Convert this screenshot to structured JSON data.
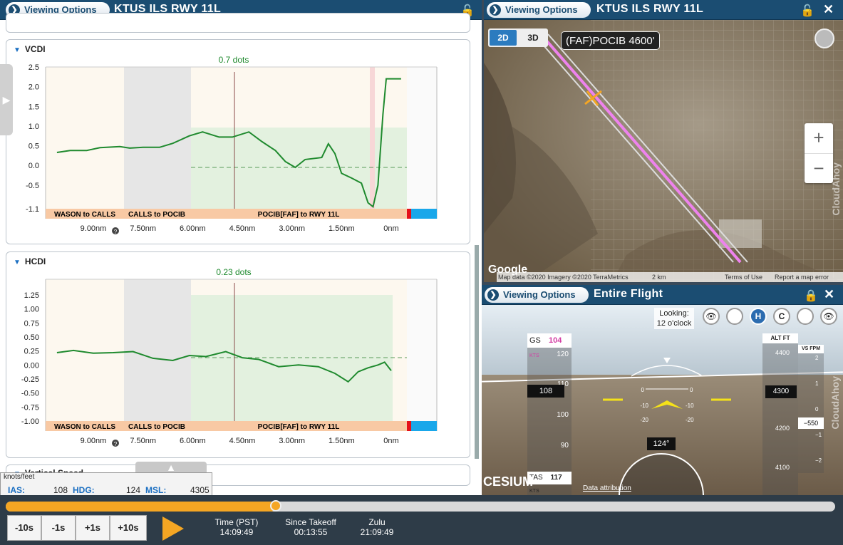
{
  "left_header": {
    "viewing_label": "Viewing Options",
    "title": "KTUS ILS RWY 11L"
  },
  "map_header": {
    "viewing_label": "Viewing Options",
    "title": "KTUS ILS RWY 11L"
  },
  "cam_header": {
    "viewing_label": "Viewing Options",
    "title": "Entire Flight"
  },
  "vcdi": {
    "title": "VCDI",
    "value_label": "0.7 dots"
  },
  "hcdi": {
    "title": "HCDI",
    "value_label": "0.23 dots"
  },
  "vspeed": {
    "title": "Vertical Speed"
  },
  "segments": [
    "WASON to CALLS",
    "CALLS to POCIB",
    "POCIB[FAF] to RWY 11L"
  ],
  "x_ticks": [
    "9.00nm",
    "7.50nm",
    "6.00nm",
    "4.50nm",
    "3.00nm",
    "1.50nm",
    "0nm"
  ],
  "chart_data": [
    {
      "type": "line",
      "title": "VCDI",
      "x_ticks": [
        "9.00nm",
        "7.50nm",
        "6.00nm",
        "4.50nm",
        "3.00nm",
        "1.50nm",
        "0nm"
      ],
      "y_ticks": [
        "2.5",
        "2.0",
        "1.5",
        "1.0",
        "0.5",
        "0.0",
        "-0.5",
        "-1.1"
      ],
      "ylim": [
        -1.1,
        2.5
      ],
      "annotation": "0.7 dots",
      "series": [
        {
          "values": [
            [
              10.1,
              0.33
            ],
            [
              9.7,
              0.38
            ],
            [
              9.2,
              0.38
            ],
            [
              8.8,
              0.45
            ],
            [
              8.2,
              0.48
            ],
            [
              7.9,
              0.44
            ],
            [
              7.5,
              0.46
            ],
            [
              7.0,
              0.46
            ],
            [
              6.6,
              0.56
            ],
            [
              6.1,
              0.75
            ],
            [
              5.7,
              0.85
            ],
            [
              5.2,
              0.72
            ],
            [
              4.8,
              0.72
            ],
            [
              4.3,
              0.85
            ],
            [
              3.9,
              0.6
            ],
            [
              3.5,
              0.38
            ],
            [
              3.2,
              0.1
            ],
            [
              2.9,
              -0.05
            ],
            [
              2.6,
              0.15
            ],
            [
              2.1,
              0.2
            ],
            [
              1.9,
              0.55
            ],
            [
              1.7,
              0.3
            ],
            [
              1.5,
              -0.2
            ],
            [
              1.2,
              -0.32
            ],
            [
              0.9,
              -0.45
            ],
            [
              0.7,
              -0.95
            ],
            [
              0.55,
              -1.05
            ],
            [
              0.4,
              -0.5
            ],
            [
              0.25,
              1.3
            ],
            [
              0.15,
              2.2
            ],
            [
              -0.3,
              2.2
            ]
          ]
        }
      ]
    },
    {
      "type": "line",
      "title": "HCDI",
      "x_ticks": [
        "9.00nm",
        "7.50nm",
        "6.00nm",
        "4.50nm",
        "3.00nm",
        "1.50nm",
        "0nm"
      ],
      "y_ticks": [
        "1.25",
        "1.00",
        "0.75",
        "0.50",
        "0.25",
        "0.00",
        "-0.25",
        "-0.50",
        "-0.75",
        "-1.00"
      ],
      "ylim": [
        -1.0,
        1.25
      ],
      "annotation": "0.23 dots",
      "series": [
        {
          "values": [
            [
              10.1,
              0.22
            ],
            [
              9.6,
              0.26
            ],
            [
              9.0,
              0.21
            ],
            [
              8.4,
              0.22
            ],
            [
              7.8,
              0.24
            ],
            [
              7.2,
              0.12
            ],
            [
              6.6,
              0.08
            ],
            [
              6.1,
              0.17
            ],
            [
              5.6,
              0.15
            ],
            [
              5.0,
              0.24
            ],
            [
              4.5,
              0.13
            ],
            [
              4.0,
              0.1
            ],
            [
              3.4,
              -0.03
            ],
            [
              2.8,
              0.0
            ],
            [
              2.2,
              -0.03
            ],
            [
              1.7,
              -0.15
            ],
            [
              1.3,
              -0.3
            ],
            [
              1.0,
              -0.12
            ],
            [
              0.7,
              -0.05
            ],
            [
              0.4,
              0.0
            ],
            [
              0.2,
              0.05
            ],
            [
              0.0,
              -0.1
            ]
          ]
        }
      ]
    }
  ],
  "map": {
    "waypoint_label": "(FAF)POCIB 4600'",
    "btn_2d": "2D",
    "btn_3d": "3D",
    "zoom_in": "+",
    "zoom_out": "−",
    "google": "Google",
    "attribution": "Map data ©2020 Imagery ©2020 TerraMetrics",
    "scale": "2 km",
    "terms": "Terms of Use",
    "report": "Report a map error",
    "watermark": "CloudAhoy"
  },
  "camera": {
    "looking_label": "Looking:",
    "looking_value": "12 o'clock",
    "gs_label": "GS",
    "gs_value": "104",
    "gs_unit": "KTS",
    "speed_current": "108",
    "speed_ticks": [
      "120",
      "110",
      "100",
      "90"
    ],
    "tas_label": "TAS",
    "tas_value": "117",
    "tas_unit": "KTS",
    "alt_label": "ALT FT",
    "alt_current": "4300",
    "alt_ticks": [
      "4400",
      "4200",
      "4100"
    ],
    "vs_label": "VS FPM",
    "vs_current": "−550",
    "vs_ticks": [
      "2",
      "1",
      "0",
      "−1",
      "−2"
    ],
    "heading": "124°",
    "pitch": [
      "0",
      "-10",
      "-20",
      "-10",
      "-20"
    ],
    "cesium": "CESIUM",
    "data_attribution": "Data attribution",
    "watermark": "CloudAhoy"
  },
  "info": {
    "unit": "knots/feet",
    "ias_label": "IAS:",
    "ias_value": "108",
    "hdg_label": "HDG:",
    "hdg_value": "124",
    "msl_label": "MSL:",
    "msl_value": "4305"
  },
  "playback": {
    "progress": 0.326,
    "skip_buttons": [
      "-10s",
      "-1s",
      "+1s",
      "+10s"
    ],
    "time_label": "Time (PST)",
    "time_value": "14:09:49",
    "since_label": "Since Takeoff",
    "since_value": "00:13:55",
    "zulu_label": "Zulu",
    "zulu_value": "21:09:49"
  },
  "colors": {
    "header": "#1b4d72",
    "accent": "#f5a623",
    "line": "#1f8a2e",
    "segment_bar": "#f8c9a4"
  }
}
